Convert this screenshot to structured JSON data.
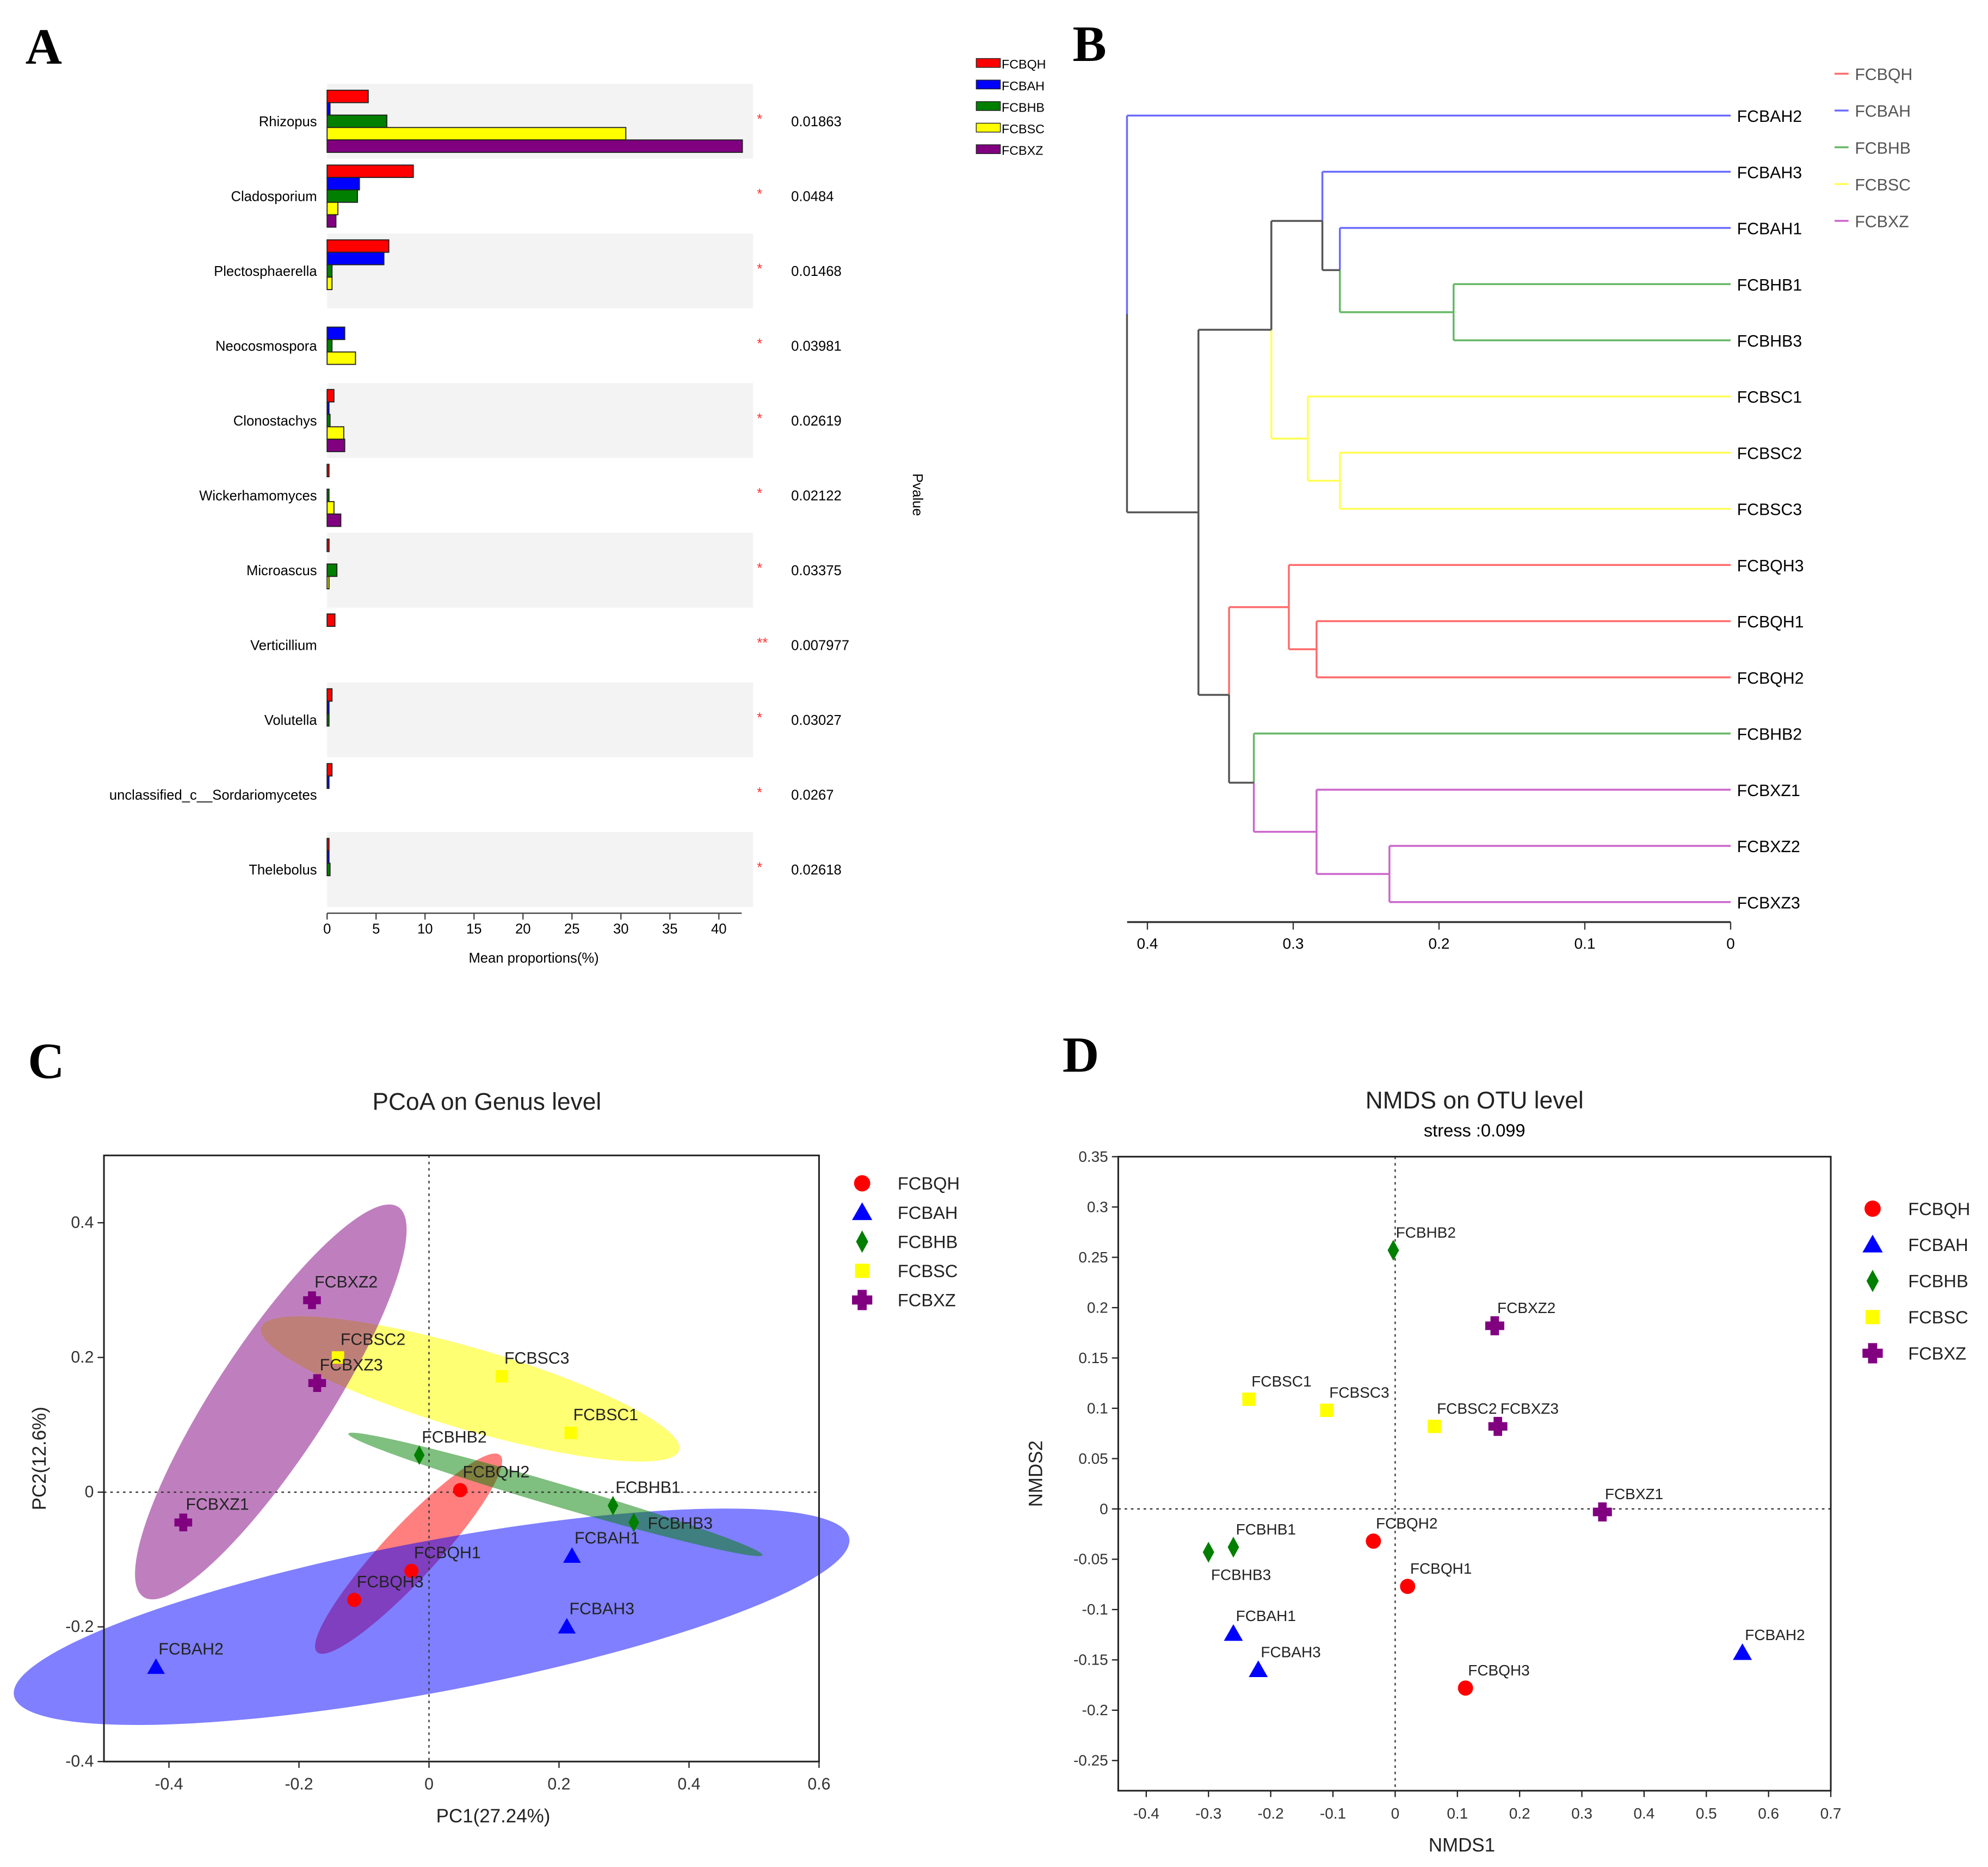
{
  "groups": [
    "FCBQH",
    "FCBAH",
    "FCBHB",
    "FCBSC",
    "FCBXZ"
  ],
  "colors": {
    "FCBQH": "#ff0000",
    "FCBAH": "#0000ff",
    "FCBHB": "#007f00",
    "FCBSC": "#ffff00",
    "FCBXZ": "#800080"
  },
  "dendro_colors": {
    "FCBQH": "#ff6b6b",
    "FCBAH": "#6b6bff",
    "FCBHB": "#66b866",
    "FCBSC": "#ffff55",
    "FCBXZ": "#cc66cc",
    "mixed": "#555555"
  },
  "panel_labels": [
    "A",
    "B",
    "C",
    "D"
  ],
  "chart_data": [
    {
      "type": "bar",
      "panel": "A",
      "orientation": "horizontal",
      "categories": [
        "Rhizopus",
        "Cladosporium",
        "Plectosphaerella",
        "Neocosmospora",
        "Clonostachys",
        "Wickerhamomyces",
        "Microascus",
        "Verticillium",
        "Volutella",
        "unclassified_c__Sordariomycetes",
        "Thelebolus"
      ],
      "series": [
        {
          "name": "FCBQH",
          "values": [
            4.2,
            8.8,
            6.3,
            0,
            0.7,
            0.1,
            0.2,
            0.8,
            0.5,
            0.5,
            0.1
          ]
        },
        {
          "name": "FCBAH",
          "values": [
            0.3,
            3.3,
            5.8,
            1.8,
            0.1,
            0,
            0,
            0,
            0.1,
            0.1,
            0.1
          ]
        },
        {
          "name": "FCBHB",
          "values": [
            6.1,
            3.1,
            0.5,
            0.5,
            0.3,
            0.1,
            1.0,
            0,
            0.1,
            0,
            0.3
          ]
        },
        {
          "name": "FCBSC",
          "values": [
            30.5,
            1.1,
            0.5,
            2.9,
            1.7,
            0.7,
            0.1,
            0,
            0,
            0,
            0
          ]
        },
        {
          "name": "FCBXZ",
          "values": [
            42.4,
            0.9,
            0,
            0,
            1.8,
            1.4,
            0,
            0,
            0,
            0,
            0
          ]
        }
      ],
      "pvalues": [
        "0.01863",
        "0.0484",
        "0.01468",
        "0.03981",
        "0.02619",
        "0.02122",
        "0.03375",
        "0.007977",
        "0.03027",
        "0.0267",
        "0.02618"
      ],
      "stars": [
        "*",
        "*",
        "*",
        "*",
        "*",
        "*",
        "*",
        "**",
        "*",
        "*",
        "*"
      ],
      "xticks": [
        "0",
        "5",
        "10",
        "15",
        "20",
        "25",
        "30",
        "35",
        "40"
      ],
      "xlabel": "Mean proportions(%)",
      "pvalue_label": "Pvalue",
      "xlim": [
        0,
        43.5
      ],
      "legend": "top-right"
    },
    {
      "type": "dendrogram",
      "panel": "B",
      "tree": {
        "h": 0.414,
        "c": [
          "FCBAH2",
          {
            "h": 0.365,
            "c": [
              {
                "h": 0.315,
                "c": [
                  {
                    "h": 0.28,
                    "c": [
                      "FCBAH3",
                      {
                        "h": 0.268,
                        "c": [
                          "FCBAH1",
                          {
                            "h": 0.19,
                            "c": [
                              "FCBHB1",
                              "FCBHB3"
                            ]
                          }
                        ]
                      }
                    ]
                  },
                  {
                    "h": 0.29,
                    "c": [
                      "FCBSC1",
                      {
                        "h": 0.268,
                        "c": [
                          "FCBSC2",
                          "FCBSC3"
                        ]
                      }
                    ]
                  }
                ]
              },
              {
                "h": 0.344,
                "c": [
                  {
                    "h": 0.303,
                    "c": [
                      "FCBQH3",
                      {
                        "h": 0.284,
                        "c": [
                          "FCBQH1",
                          "FCBQH2"
                        ]
                      }
                    ]
                  },
                  {
                    "h": 0.327,
                    "c": [
                      "FCBHB2",
                      {
                        "h": 0.284,
                        "c": [
                          "FCBXZ1",
                          {
                            "h": 0.234,
                            "c": [
                              "FCBXZ2",
                              "FCBXZ3"
                            ]
                          }
                        ]
                      }
                    ]
                  }
                ]
              }
            ]
          }
        ]
      },
      "xticks": [
        "0.4",
        "0.3",
        "0.2",
        "0.1",
        "0"
      ],
      "xlim": [
        0.414,
        0
      ],
      "legend": "top-right"
    },
    {
      "type": "scatter",
      "panel": "C",
      "title": "PCoA on Genus level",
      "xlabel": "PC1(27.24%)",
      "ylabel": "PC2(12.6%)",
      "xlim": [
        -0.5,
        0.6
      ],
      "ylim": [
        -0.4,
        0.5
      ],
      "xticks": [
        -0.4,
        -0.2,
        0,
        0.2,
        0.4,
        0.6
      ],
      "yticks": [
        -0.4,
        -0.2,
        0,
        0.2,
        0.4
      ],
      "points": [
        {
          "label": "FCBQH1",
          "group": "FCBQH",
          "x": -0.027,
          "y": -0.117
        },
        {
          "label": "FCBQH2",
          "group": "FCBQH",
          "x": 0.048,
          "y": 0.003
        },
        {
          "label": "FCBQH3",
          "group": "FCBQH",
          "x": -0.115,
          "y": -0.16
        },
        {
          "label": "FCBAH1",
          "group": "FCBAH",
          "x": 0.22,
          "y": -0.095
        },
        {
          "label": "FCBAH2",
          "group": "FCBAH",
          "x": -0.42,
          "y": -0.26
        },
        {
          "label": "FCBAH3",
          "group": "FCBAH",
          "x": 0.212,
          "y": -0.2
        },
        {
          "label": "FCBHB1",
          "group": "FCBHB",
          "x": 0.283,
          "y": -0.02
        },
        {
          "label": "FCBHB2",
          "group": "FCBHB",
          "x": -0.015,
          "y": 0.055
        },
        {
          "label": "FCBHB3",
          "group": "FCBHB",
          "x": 0.315,
          "y": -0.045
        },
        {
          "label": "FCBSC1",
          "group": "FCBSC",
          "x": 0.218,
          "y": 0.088
        },
        {
          "label": "FCBSC2",
          "group": "FCBSC",
          "x": -0.14,
          "y": 0.2
        },
        {
          "label": "FCBSC3",
          "group": "FCBSC",
          "x": 0.112,
          "y": 0.172
        },
        {
          "label": "FCBXZ1",
          "group": "FCBXZ",
          "x": -0.378,
          "y": -0.045
        },
        {
          "label": "FCBXZ2",
          "group": "FCBXZ",
          "x": -0.18,
          "y": 0.285
        },
        {
          "label": "FCBXZ3",
          "group": "FCBXZ",
          "x": -0.172,
          "y": 0.162
        }
      ],
      "ellipses": true,
      "legend": "right"
    },
    {
      "type": "scatter",
      "panel": "D",
      "title": "NMDS on OTU level",
      "subtitle": "stress :0.099",
      "xlabel": "NMDS1",
      "ylabel": "NMDS2",
      "xlim": [
        -0.445,
        0.7
      ],
      "ylim": [
        -0.28,
        0.35
      ],
      "xticks": [
        -0.4,
        -0.3,
        -0.2,
        -0.1,
        0,
        0.1,
        0.2,
        0.3,
        0.4,
        0.5,
        0.6,
        0.7
      ],
      "yticks": [
        -0.25,
        -0.2,
        -0.15,
        -0.1,
        -0.05,
        0,
        0.05,
        0.1,
        0.15,
        0.2,
        0.25,
        0.3,
        0.35
      ],
      "points": [
        {
          "label": "FCBQH1",
          "group": "FCBQH",
          "x": 0.02,
          "y": -0.077
        },
        {
          "label": "FCBQH2",
          "group": "FCBQH",
          "x": -0.035,
          "y": -0.032
        },
        {
          "label": "FCBQH3",
          "group": "FCBQH",
          "x": 0.113,
          "y": -0.178
        },
        {
          "label": "FCBAH1",
          "group": "FCBAH",
          "x": -0.26,
          "y": -0.124
        },
        {
          "label": "FCBAH2",
          "group": "FCBAH",
          "x": 0.558,
          "y": -0.143
        },
        {
          "label": "FCBAH3",
          "group": "FCBAH",
          "x": -0.22,
          "y": -0.16
        },
        {
          "label": "FCBHB1",
          "group": "FCBHB",
          "x": -0.26,
          "y": -0.038
        },
        {
          "label": "FCBHB2",
          "group": "FCBHB",
          "x": -0.003,
          "y": 0.257
        },
        {
          "label": "FCBHB3",
          "group": "FCBHB",
          "x": -0.3,
          "y": -0.043
        },
        {
          "label": "FCBSC1",
          "group": "FCBSC",
          "x": -0.235,
          "y": 0.109
        },
        {
          "label": "FCBSC2",
          "group": "FCBSC",
          "x": 0.063,
          "y": 0.082
        },
        {
          "label": "FCBSC3",
          "group": "FCBSC",
          "x": -0.11,
          "y": 0.098
        },
        {
          "label": "FCBXZ1",
          "group": "FCBXZ",
          "x": 0.333,
          "y": -0.003
        },
        {
          "label": "FCBXZ2",
          "group": "FCBXZ",
          "x": 0.16,
          "y": 0.182
        },
        {
          "label": "FCBXZ3",
          "group": "FCBXZ",
          "x": 0.165,
          "y": 0.082
        }
      ],
      "ellipses": false,
      "legend": "right"
    }
  ]
}
